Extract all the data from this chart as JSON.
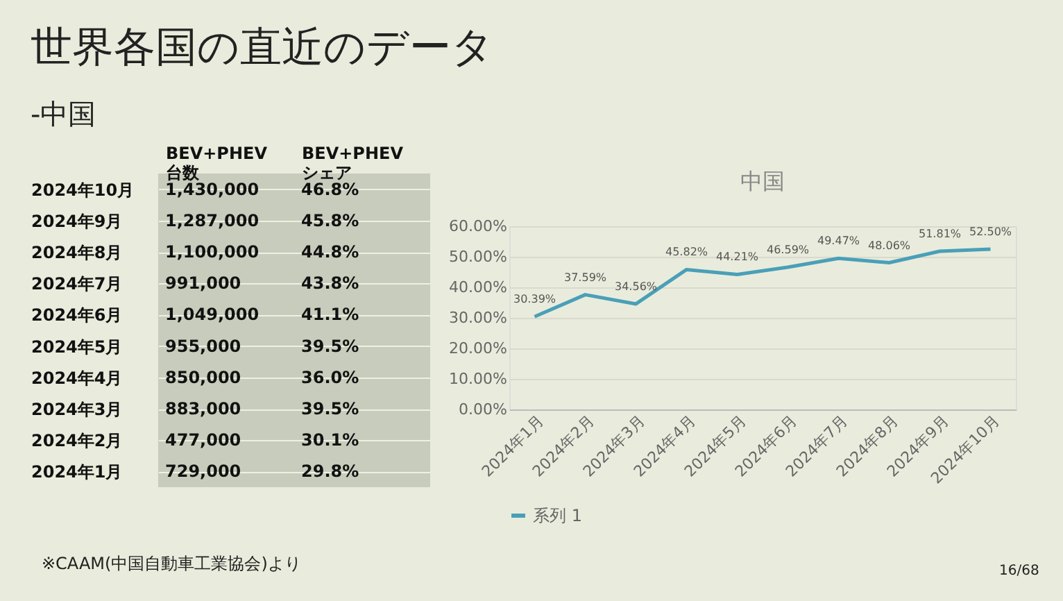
{
  "chart_data": [
    {
      "type": "other",
      "title": "世界各国の直近のデータ",
      "subtitle": "-中国",
      "categories": [
        "2024年10月",
        "2024年9月",
        "2024年8月",
        "2024年7月",
        "2024年6月",
        "2024年5月",
        "2024年4月",
        "2024年3月",
        "2024年2月",
        "2024年1月"
      ],
      "series": [
        {
          "name": "BEV+PHEV 台数",
          "values": [
            1430000,
            1287000,
            1100000,
            991000,
            1049000,
            955000,
            850000,
            883000,
            477000,
            729000
          ],
          "value_labels": [
            "1,430,000",
            "1,287,000",
            "1,100,000",
            "991,000",
            "1,049,000",
            "955,000",
            "850,000",
            "883,000",
            "477,000",
            "729,000"
          ]
        },
        {
          "name": "BEV+PHEV シェア",
          "values": [
            46.8,
            45.8,
            44.8,
            43.8,
            41.1,
            39.5,
            36.0,
            39.5,
            30.1,
            29.8
          ],
          "value_labels": [
            "46.8%",
            "45.8%",
            "44.8%",
            "43.8%",
            "41.1%",
            "39.5%",
            "36.0%",
            "39.5%",
            "30.1%",
            "29.8%"
          ]
        }
      ],
      "annotations": [
        "※CAAM(中国自動車工業協会)より",
        "16/68"
      ]
    },
    {
      "type": "line",
      "title": "中国",
      "categories": [
        "2024年1月",
        "2024年2月",
        "2024年3月",
        "2024年4月",
        "2024年5月",
        "2024年6月",
        "2024年7月",
        "2024年8月",
        "2024年9月",
        "2024年10月"
      ],
      "series": [
        {
          "name": "系列 1",
          "color": "#4a9fb8",
          "values": [
            30.39,
            37.59,
            34.56,
            45.82,
            44.21,
            46.59,
            49.47,
            48.06,
            51.81,
            52.5
          ],
          "value_labels": [
            "30.39%",
            "37.59%",
            "34.56%",
            "45.82%",
            "44.21%",
            "46.59%",
            "49.47%",
            "48.06%",
            "51.81%",
            "52.50%"
          ]
        }
      ],
      "ylim": [
        0,
        60
      ],
      "yticks": [
        {
          "value": 0,
          "label": "0.00%"
        },
        {
          "value": 10,
          "label": "10.00%"
        },
        {
          "value": 20,
          "label": "20.00%"
        },
        {
          "value": 30,
          "label": "30.00%"
        },
        {
          "value": 40,
          "label": "40.00%"
        },
        {
          "value": 50,
          "label": "50.00%"
        },
        {
          "value": 60,
          "label": "60.00%"
        }
      ],
      "grid": "y",
      "legend": "bottom"
    }
  ]
}
